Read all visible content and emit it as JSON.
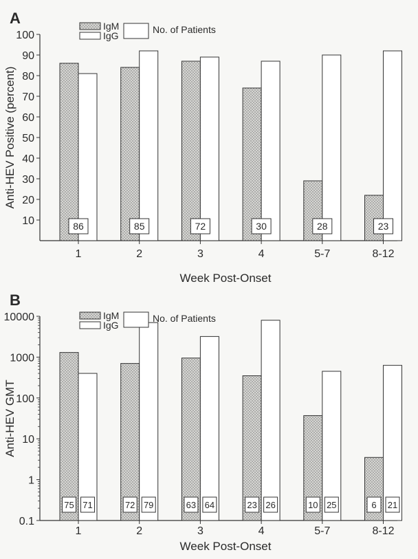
{
  "chart_data": [
    {
      "panel_label": "A",
      "type": "bar",
      "scale": "linear",
      "categories": [
        "1",
        "2",
        "3",
        "4",
        "5-7",
        "8-12"
      ],
      "series": [
        {
          "name": "IgM",
          "values": [
            86,
            84,
            87,
            74,
            29,
            22
          ]
        },
        {
          "name": "IgG",
          "values": [
            81,
            92,
            89,
            87,
            90,
            92
          ]
        }
      ],
      "legend_title": "No. of Patients",
      "patient_counts": [
        [
          "86"
        ],
        [
          "85"
        ],
        [
          "72"
        ],
        [
          "30"
        ],
        [
          "28"
        ],
        [
          "23"
        ]
      ],
      "xlabel": "Week Post-Onset",
      "ylabel": "Anti-HEV Positive (percent)",
      "ylim": [
        0,
        100
      ],
      "yticks": [
        "10",
        "20",
        "30",
        "40",
        "50",
        "60",
        "70",
        "80",
        "90",
        "100"
      ],
      "legend_position": "top-left",
      "grid": false
    },
    {
      "panel_label": "B",
      "type": "bar",
      "scale": "log",
      "categories": [
        "1",
        "2",
        "3",
        "4",
        "5-7",
        "8-12"
      ],
      "series": [
        {
          "name": "IgM",
          "values": [
            1300,
            700,
            950,
            350,
            37,
            3.5
          ]
        },
        {
          "name": "IgG",
          "values": [
            400,
            7000,
            3200,
            8000,
            450,
            630
          ]
        }
      ],
      "legend_title": "No. of Patients",
      "patient_counts": [
        [
          "75",
          "71"
        ],
        [
          "72",
          "79"
        ],
        [
          "63",
          "64"
        ],
        [
          "23",
          "26"
        ],
        [
          "10",
          "25"
        ],
        [
          "6",
          "21"
        ]
      ],
      "xlabel": "Week Post-Onset",
      "ylabel": "Anti-HEV GMT",
      "ylim": [
        0.1,
        10000
      ],
      "yticks": [
        "0.1",
        "1",
        "10",
        "100",
        "1000",
        "10000"
      ],
      "legend_position": "top-left",
      "grid": false
    }
  ],
  "colors": {
    "igm_fill": "#d6d6d3",
    "igm_dots": "#6f6f6f",
    "igg_fill": "#ffffff",
    "line": "#333333"
  }
}
